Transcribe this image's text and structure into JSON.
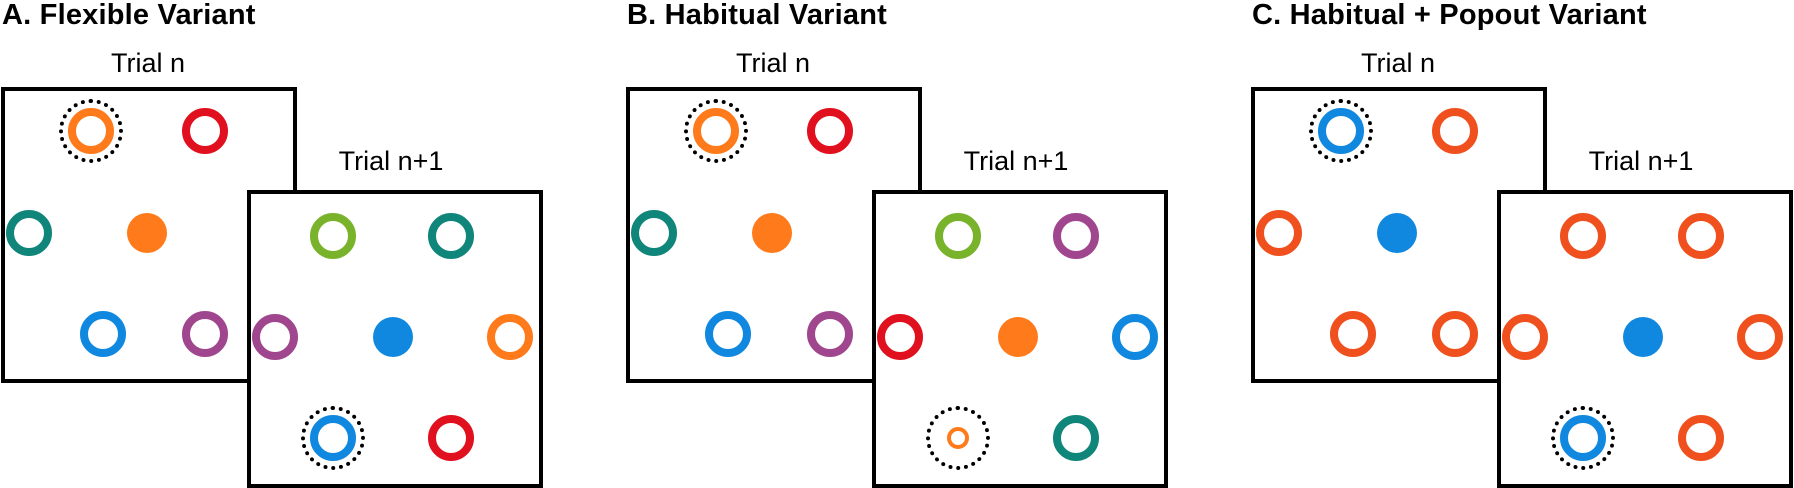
{
  "panels": [
    {
      "title": "A. Flexible Variant",
      "trial_n_label": "Trial n",
      "trial_n1_label": "Trial n+1",
      "trial_n": {
        "fixation_color": "#FF7A1A",
        "items": [
          {
            "kind": "ring",
            "color": "#FF7A1A",
            "selected": true
          },
          {
            "kind": "ring",
            "color": "#E0101E"
          },
          {
            "kind": "ring",
            "color": "#10857A"
          },
          {
            "kind": "ring",
            "color": "#1188E0"
          },
          {
            "kind": "ring",
            "color": "#A0468E"
          }
        ]
      },
      "trial_n1": {
        "fixation_color": "#1188E0",
        "items": [
          {
            "kind": "ring",
            "color": "#79B32B"
          },
          {
            "kind": "ring",
            "color": "#10857A"
          },
          {
            "kind": "ring",
            "color": "#A0468E"
          },
          {
            "kind": "ring",
            "color": "#FF7A1A"
          },
          {
            "kind": "ring",
            "color": "#1188E0",
            "selected": true
          },
          {
            "kind": "ring",
            "color": "#E0101E"
          }
        ]
      }
    },
    {
      "title": "B. Habitual Variant",
      "trial_n_label": "Trial n",
      "trial_n1_label": "Trial n+1",
      "trial_n": {
        "fixation_color": "#FF7A1A",
        "items": [
          {
            "kind": "ring",
            "color": "#FF7A1A",
            "selected": true
          },
          {
            "kind": "ring",
            "color": "#E0101E"
          },
          {
            "kind": "ring",
            "color": "#10857A"
          },
          {
            "kind": "ring",
            "color": "#1188E0"
          },
          {
            "kind": "ring",
            "color": "#A0468E"
          }
        ]
      },
      "trial_n1": {
        "fixation_color": "#FF7A1A",
        "items": [
          {
            "kind": "ring",
            "color": "#79B32B"
          },
          {
            "kind": "ring",
            "color": "#A0468E"
          },
          {
            "kind": "ring",
            "color": "#E0101E"
          },
          {
            "kind": "ring",
            "color": "#1188E0"
          },
          {
            "kind": "small-ring",
            "color": "#FF7A1A",
            "selected": true
          },
          {
            "kind": "ring",
            "color": "#10857A"
          }
        ]
      }
    },
    {
      "title": "C. Habitual + Popout Variant",
      "trial_n_label": "Trial n",
      "trial_n1_label": "Trial n+1",
      "trial_n": {
        "fixation_color": "#1188E0",
        "items": [
          {
            "kind": "ring",
            "color": "#1188E0",
            "selected": true
          },
          {
            "kind": "ring",
            "color": "#F0501E"
          },
          {
            "kind": "ring",
            "color": "#F0501E"
          },
          {
            "kind": "ring",
            "color": "#F0501E"
          },
          {
            "kind": "ring",
            "color": "#F0501E"
          }
        ]
      },
      "trial_n1": {
        "fixation_color": "#1188E0",
        "items": [
          {
            "kind": "ring",
            "color": "#F0501E"
          },
          {
            "kind": "ring",
            "color": "#F0501E"
          },
          {
            "kind": "ring",
            "color": "#F0501E"
          },
          {
            "kind": "ring",
            "color": "#F0501E"
          },
          {
            "kind": "ring",
            "color": "#1188E0",
            "selected": true
          },
          {
            "kind": "ring",
            "color": "#F0501E"
          }
        ]
      }
    }
  ]
}
